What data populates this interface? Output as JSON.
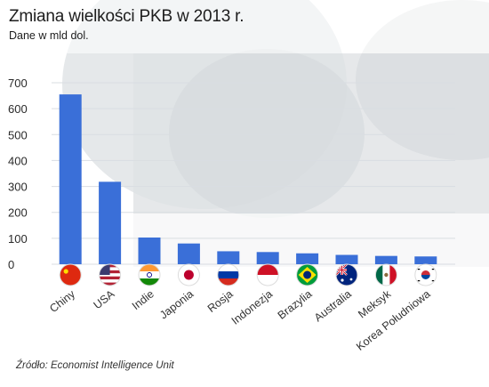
{
  "header": {
    "title": "Zmiana wielkości PKB w 2013 r.",
    "subtitle": "Dane w mld dol."
  },
  "footer": {
    "source": "Źródło: Economist Intelligence Unit"
  },
  "colors": {
    "bar": "#3a6fd8",
    "grid": "#d9dde2"
  },
  "chart_data": {
    "type": "bar",
    "title": "Zmiana wielkości PKB w 2013 r.",
    "subtitle": "Dane w mld dol.",
    "xlabel": "",
    "ylabel": "",
    "ylim": [
      0,
      700
    ],
    "yticks": [
      0,
      100,
      200,
      300,
      400,
      500,
      600,
      700
    ],
    "grid": true,
    "categories": [
      "Chiny",
      "USA",
      "Indie",
      "Japonia",
      "Rosja",
      "Indonezja",
      "Brazylia",
      "Australia",
      "Meksyk",
      "Korea Południowa"
    ],
    "values": [
      655,
      318,
      103,
      80,
      50,
      47,
      42,
      36,
      32,
      30
    ],
    "flags": [
      "china-flag-icon",
      "usa-flag-icon",
      "india-flag-icon",
      "japan-flag-icon",
      "russia-flag-icon",
      "indonesia-flag-icon",
      "brazil-flag-icon",
      "australia-flag-icon",
      "mexico-flag-icon",
      "south-korea-flag-icon"
    ]
  }
}
